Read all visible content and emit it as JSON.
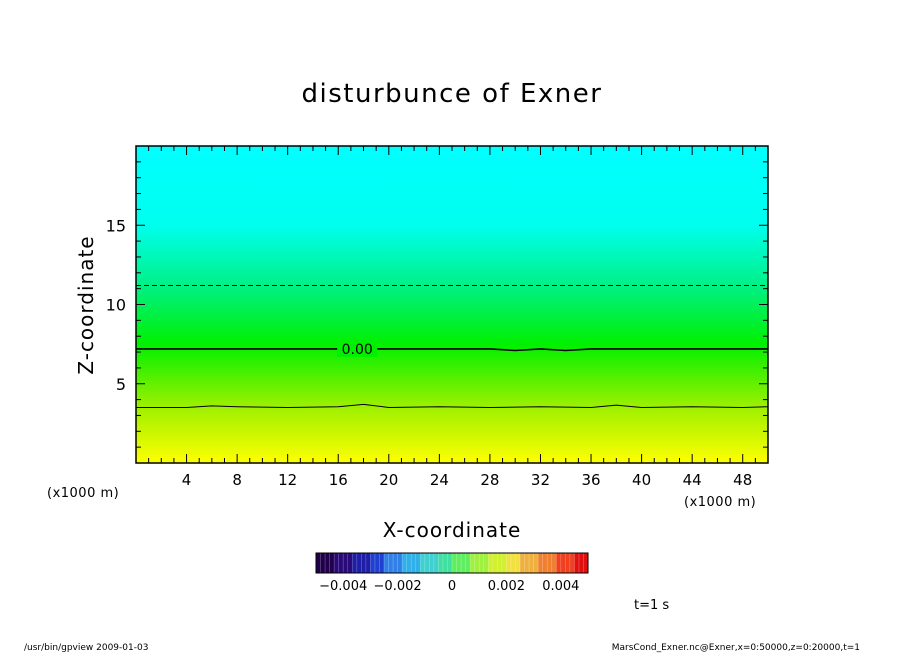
{
  "chart_data": {
    "type": "heatmap",
    "title": "disturbunce of Exner",
    "xlabel": "X-coordinate",
    "ylabel": "Z-coordinate",
    "x_unit": "(×1000 m)",
    "y_unit": "(×1000 m)",
    "xlim": [
      0,
      50
    ],
    "ylim": [
      0,
      20
    ],
    "x_ticks": [
      4,
      8,
      12,
      16,
      20,
      24,
      28,
      32,
      36,
      40,
      44,
      48
    ],
    "y_ticks": [
      5,
      10,
      15
    ],
    "contours": [
      {
        "level": 0.0,
        "label": "0.00",
        "style": "solid-thick",
        "x": [
          0,
          10,
          16,
          20,
          26,
          28,
          30,
          32,
          34,
          36,
          40,
          50
        ],
        "z": [
          7.2,
          7.2,
          7.2,
          7.2,
          7.2,
          7.2,
          7.1,
          7.2,
          7.1,
          7.2,
          7.2,
          7.2
        ]
      },
      {
        "level": 0.002,
        "label": "",
        "style": "solid",
        "x": [
          0,
          4,
          6,
          8,
          12,
          16,
          18,
          20,
          24,
          28,
          32,
          36,
          38,
          40,
          44,
          48,
          50
        ],
        "z": [
          3.5,
          3.5,
          3.6,
          3.55,
          3.5,
          3.55,
          3.7,
          3.5,
          3.55,
          3.5,
          3.55,
          3.5,
          3.65,
          3.5,
          3.55,
          3.5,
          3.55
        ]
      },
      {
        "level": -0.002,
        "label": "",
        "style": "dashed",
        "x": [
          0,
          50
        ],
        "z": [
          11.2,
          11.2
        ]
      }
    ],
    "gradient": [
      {
        "z": 0,
        "color": "#ffff00"
      },
      {
        "z": 3.5,
        "color": "#9ff000"
      },
      {
        "z": 7.5,
        "color": "#00f000"
      },
      {
        "z": 11.0,
        "color": "#00f080"
      },
      {
        "z": 15.0,
        "color": "#00ffee"
      },
      {
        "z": 20,
        "color": "#00ffff"
      }
    ],
    "colorbar": {
      "range": [
        -0.005,
        0.005
      ],
      "tick_labels": [
        "−0.004",
        "−0.002",
        "0",
        "0.002",
        "0.004"
      ],
      "tick_values": [
        -0.004,
        -0.002,
        0,
        0.002,
        0.004
      ],
      "colors": [
        "#20004a",
        "#2a0a7a",
        "#1e1ea8",
        "#2040d0",
        "#3080e8",
        "#30b0e8",
        "#40d0d0",
        "#40e0a0",
        "#60ee60",
        "#a0f040",
        "#d0f030",
        "#f0e040",
        "#f0b040",
        "#f08030",
        "#f04020",
        "#e01010"
      ]
    },
    "grid": false
  },
  "labels": {
    "time": "t=1  s",
    "x_unit_left": "(x1000 m)",
    "x_unit_right": "(x1000 m)"
  },
  "footer": {
    "left": "/usr/bin/gpview   2009-01-03",
    "right": "MarsCond_Exner.nc@Exner,x=0:50000,z=0:20000,t=1"
  }
}
